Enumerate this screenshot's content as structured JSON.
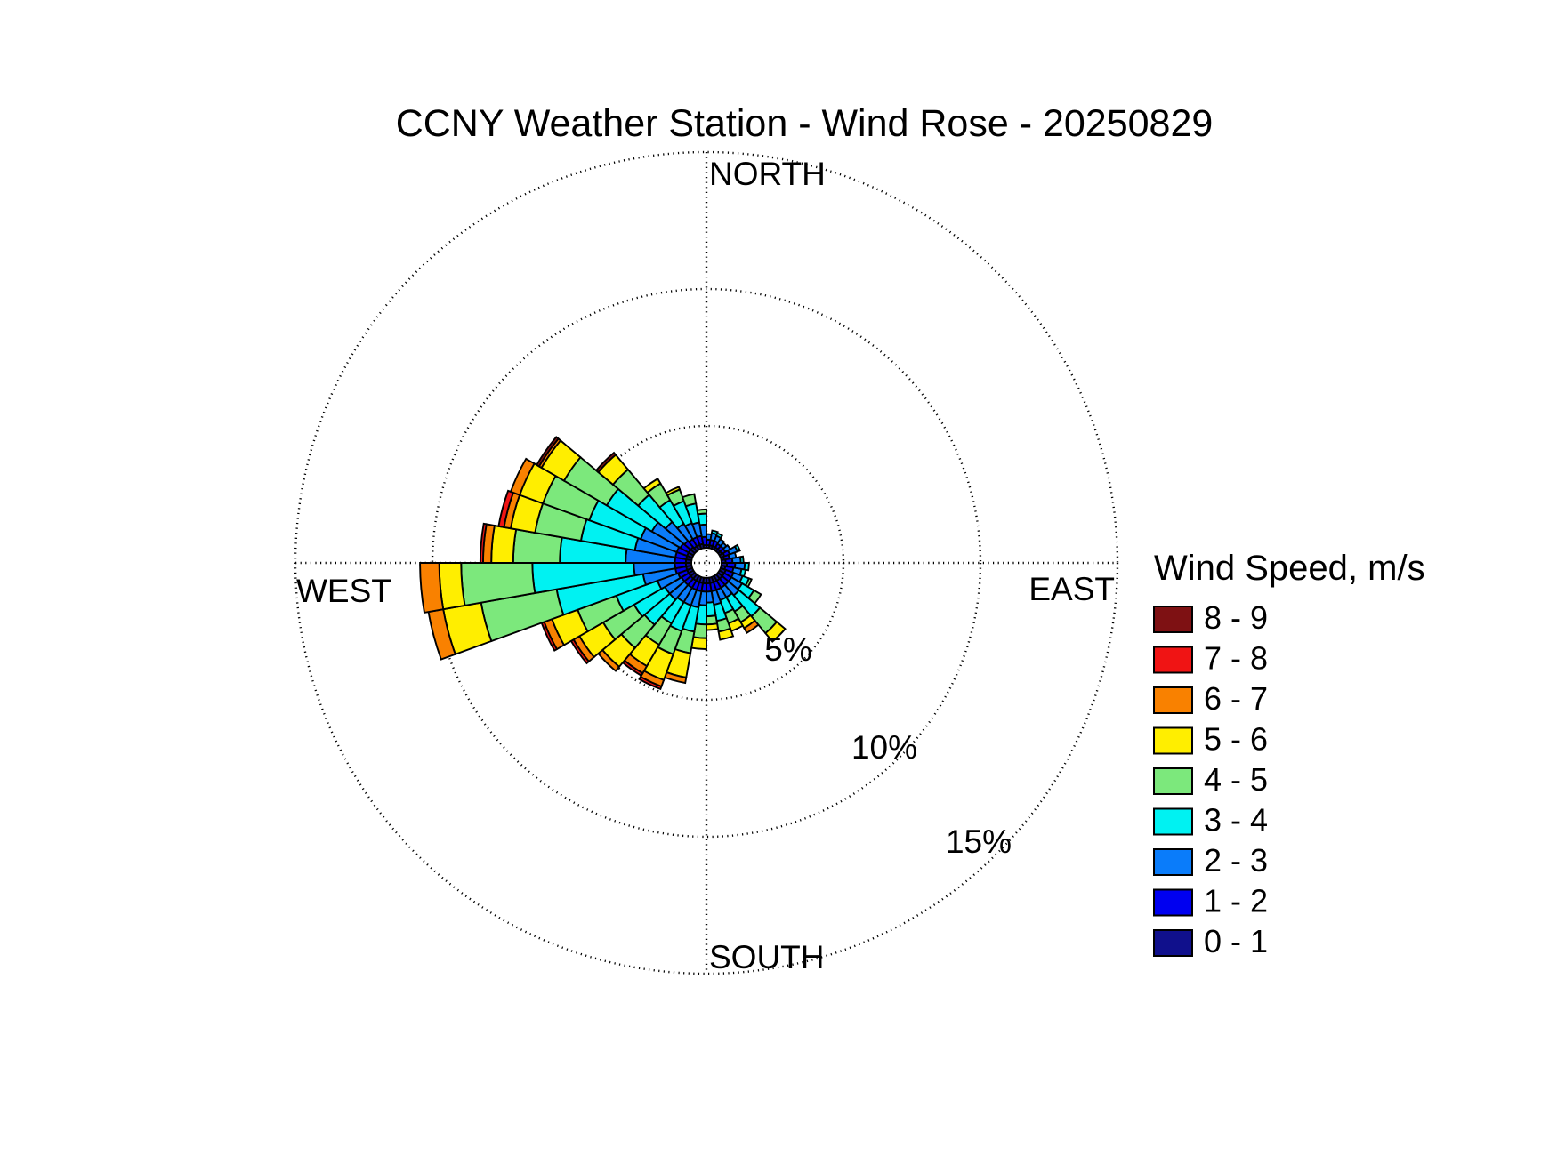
{
  "title": "CCNY Weather Station - Wind Rose - 20250829",
  "compass": {
    "north": "NORTH",
    "east": "EAST",
    "south": "SOUTH",
    "west": "WEST"
  },
  "ring_labels": [
    "5%",
    "10%",
    "15%"
  ],
  "legend": {
    "title": "Wind Speed, m/s",
    "items": [
      {
        "label": "8 - 9",
        "color": "#7E1113"
      },
      {
        "label": "7 - 8",
        "color": "#F01414"
      },
      {
        "label": "6 - 7",
        "color": "#F98100"
      },
      {
        "label": "5 - 6",
        "color": "#FFEE00"
      },
      {
        "label": "4 - 5",
        "color": "#7CE87C"
      },
      {
        "label": "3 - 4",
        "color": "#00F2F2"
      },
      {
        "label": "2 - 3",
        "color": "#0A7CFA"
      },
      {
        "label": "1 - 2",
        "color": "#0000F0"
      },
      {
        "label": "0 - 1",
        "color": "#10108C"
      }
    ]
  },
  "chart_data": {
    "type": "wind_rose_polar_stacked_bar",
    "title": "CCNY Weather Station - Wind Rose - 20250829",
    "units": "m/s",
    "frequency_units": "percent",
    "grid": "dotted",
    "ring_percent": [
      5,
      10,
      15
    ],
    "direction_convention": "compass bearing wind blowing from, bin centers, 10-degree bins",
    "speed_bins": [
      "0 - 1",
      "1 - 2",
      "2 - 3",
      "3 - 4",
      "4 - 5",
      "5 - 6",
      "6 - 7",
      "7 - 8",
      "8 - 9"
    ],
    "speed_bin_colors": [
      "#10108C",
      "#0000F0",
      "#0A7CFA",
      "#00F2F2",
      "#7CE87C",
      "#FFEE00",
      "#F98100",
      "#F01414",
      "#7E1113"
    ],
    "directions_deg": [
      5,
      15,
      25,
      35,
      45,
      55,
      65,
      75,
      85,
      95,
      105,
      115,
      125,
      135,
      145,
      155,
      165,
      175,
      185,
      195,
      205,
      215,
      225,
      235,
      245,
      255,
      265,
      275,
      285,
      295,
      305,
      315,
      325,
      335,
      345,
      355
    ],
    "frequencies_pct_by_direction": [
      [
        0.1,
        0.2,
        0.2,
        0,
        0,
        0,
        0,
        0,
        0
      ],
      [
        0.1,
        0.2,
        0.25,
        0.1,
        0,
        0,
        0,
        0,
        0
      ],
      [
        0.1,
        0.2,
        0.2,
        0.1,
        0,
        0,
        0,
        0,
        0
      ],
      [
        0.1,
        0.15,
        0.2,
        0,
        0,
        0,
        0,
        0,
        0
      ],
      [
        0.1,
        0.15,
        0.15,
        0,
        0,
        0,
        0,
        0,
        0
      ],
      [
        0.1,
        0.15,
        0.2,
        0,
        0,
        0,
        0,
        0,
        0
      ],
      [
        0.15,
        0.2,
        0.3,
        0.1,
        0,
        0,
        0,
        0,
        0
      ],
      [
        0.1,
        0.2,
        0.25,
        0,
        0,
        0,
        0,
        0,
        0
      ],
      [
        0.15,
        0.25,
        0.3,
        0.1,
        0,
        0,
        0,
        0,
        0
      ],
      [
        0.2,
        0.3,
        0.35,
        0.15,
        0,
        0,
        0,
        0,
        0
      ],
      [
        0.15,
        0.3,
        0.3,
        0.15,
        0,
        0,
        0,
        0,
        0
      ],
      [
        0.2,
        0.3,
        0.35,
        0.25,
        0.1,
        0,
        0,
        0,
        0
      ],
      [
        0.2,
        0.3,
        0.45,
        0.5,
        0.3,
        0,
        0,
        0,
        0
      ],
      [
        0.2,
        0.3,
        0.5,
        1.0,
        0.8,
        0.4,
        0,
        0,
        0
      ],
      [
        0.2,
        0.3,
        0.4,
        0.6,
        0.45,
        0.25,
        0.2,
        0,
        0
      ],
      [
        0.2,
        0.3,
        0.4,
        0.5,
        0.4,
        0.3,
        0,
        0,
        0
      ],
      [
        0.2,
        0.3,
        0.5,
        0.6,
        0.4,
        0.3,
        0,
        0,
        0
      ],
      [
        0.2,
        0.3,
        0.4,
        0.5,
        0.3,
        0.2,
        0,
        0,
        0
      ],
      [
        0.2,
        0.3,
        0.5,
        0.7,
        0.5,
        0.4,
        0,
        0,
        0
      ],
      [
        0.2,
        0.3,
        0.6,
        0.9,
        0.8,
        0.9,
        0.2,
        0,
        0
      ],
      [
        0.2,
        0.3,
        0.6,
        1.0,
        0.9,
        1.0,
        0.25,
        0.1,
        0
      ],
      [
        0.2,
        0.3,
        0.6,
        0.9,
        0.9,
        0.9,
        0.3,
        0.1,
        0
      ],
      [
        0.2,
        0.3,
        0.7,
        1.2,
        1.1,
        0.9,
        0.2,
        0,
        0
      ],
      [
        0.2,
        0.3,
        0.7,
        1.3,
        1.3,
        1.0,
        0.25,
        0.1,
        0
      ],
      [
        0.2,
        0.35,
        0.8,
        1.6,
        1.5,
        1.0,
        0.3,
        0.1,
        0
      ],
      [
        0.2,
        0.4,
        1.2,
        3.2,
        2.8,
        1.4,
        0.55,
        0,
        0
      ],
      [
        0.2,
        0.4,
        1.5,
        3.7,
        2.6,
        0.8,
        0.7,
        0,
        0
      ],
      [
        0.2,
        0.4,
        1.8,
        2.4,
        1.7,
        0.8,
        0.3,
        0.1,
        0
      ],
      [
        0.2,
        0.4,
        1.5,
        2.0,
        1.7,
        0.9,
        0.25,
        0.2,
        0
      ],
      [
        0.2,
        0.4,
        1.4,
        2.0,
        1.8,
        0.9,
        0.35,
        0,
        0
      ],
      [
        0.2,
        0.35,
        1.2,
        1.9,
        1.8,
        0.95,
        0.1,
        0,
        0.1
      ],
      [
        0.2,
        0.3,
        0.9,
        1.3,
        1.2,
        0.7,
        0,
        0,
        0.1
      ],
      [
        0.15,
        0.3,
        0.65,
        1.0,
        0.7,
        0.2,
        0,
        0,
        0
      ],
      [
        0.15,
        0.3,
        0.55,
        0.85,
        0.45,
        0.1,
        0,
        0,
        0
      ],
      [
        0.15,
        0.3,
        0.5,
        0.7,
        0.35,
        0,
        0,
        0,
        0
      ],
      [
        0.1,
        0.3,
        0.45,
        0.4,
        0.15,
        0,
        0,
        0,
        0
      ]
    ],
    "axis_ticks_labels": [
      "NORTH",
      "EAST",
      "SOUTH",
      "WEST",
      "5%",
      "10%",
      "15%"
    ],
    "legend_title": "Wind Speed, m/s",
    "legend_position": "right"
  }
}
